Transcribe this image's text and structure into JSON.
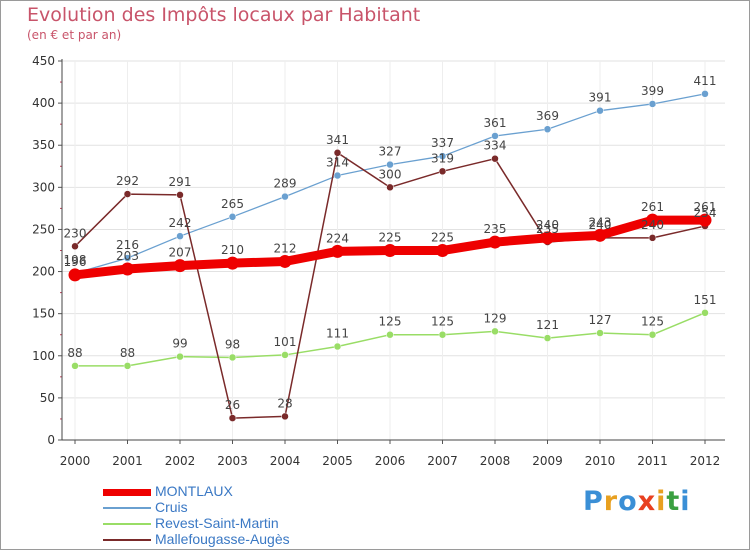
{
  "title": "Evolution des Impôts locaux par Habitant",
  "subtitle": "(en € et par an)",
  "logo": {
    "text": "Proxiti",
    "letters": [
      {
        "ch": "P",
        "color": "#3a8fd6"
      },
      {
        "ch": "r",
        "color": "#e8a020"
      },
      {
        "ch": "o",
        "color": "#3a8fd6"
      },
      {
        "ch": "x",
        "color": "#e84020"
      },
      {
        "ch": "i",
        "color": "#e8a020"
      },
      {
        "ch": "t",
        "color": "#3aa040"
      },
      {
        "ch": "i",
        "color": "#3a8fd6"
      }
    ]
  },
  "chart_data": {
    "type": "line",
    "title": "Evolution des Impôts locaux par Habitant",
    "subtitle": "(en € et par an)",
    "xlabel": "",
    "ylabel": "",
    "ylim": [
      0,
      450
    ],
    "yticks": [
      0,
      50,
      100,
      150,
      200,
      250,
      300,
      350,
      400,
      450
    ],
    "grid": true,
    "legend_position": "bottom-left",
    "categories": [
      "2000",
      "2001",
      "2002",
      "2003",
      "2004",
      "2005",
      "2006",
      "2007",
      "2008",
      "2009",
      "2010",
      "2011",
      "2012"
    ],
    "series": [
      {
        "name": "MONTLAUX",
        "color": "#ee0000",
        "values": [
          196,
          203,
          207,
          210,
          212,
          224,
          225,
          225,
          235,
          240,
          243,
          261,
          261
        ]
      },
      {
        "name": "Cruis",
        "color": "#6aa0d0",
        "values": [
          198,
          216,
          242,
          265,
          289,
          314,
          327,
          337,
          361,
          369,
          391,
          399,
          411
        ]
      },
      {
        "name": "Revest-Saint-Martin",
        "color": "#99dd66",
        "values": [
          88,
          88,
          99,
          98,
          101,
          111,
          125,
          125,
          129,
          121,
          127,
          125,
          151
        ]
      },
      {
        "name": "Mallefougasse-Augès",
        "color": "#7a2a2a",
        "values": [
          230,
          292,
          291,
          26,
          28,
          341,
          300,
          319,
          334,
          235,
          240,
          240,
          254
        ]
      }
    ]
  }
}
